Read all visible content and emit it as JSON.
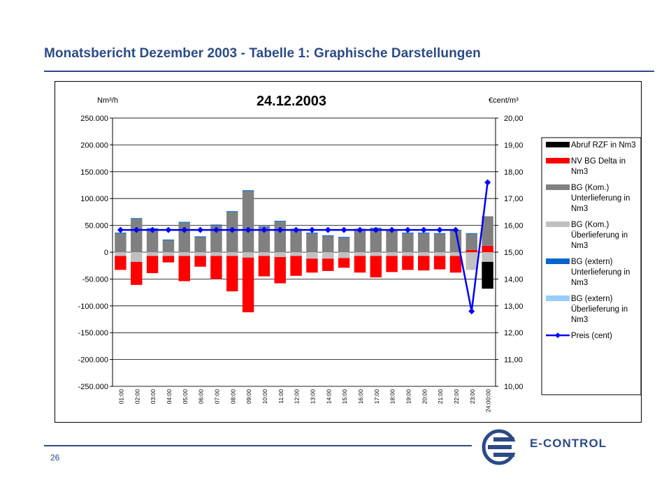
{
  "header": {
    "title": "Monatsbericht Dezember 2003 - Tabelle 1: Graphische Darstellungen"
  },
  "footer": {
    "page_number": "26",
    "brand": "E-CONTROL"
  },
  "colors": {
    "brand_blue": "#2b4a86",
    "abruf": "#000000",
    "nv_delta": "#ff0000",
    "bg_unter": "#808080",
    "bg_ueber": "#c0c0c0",
    "ext_unter": "#0066cc",
    "ext_ueber": "#99ccff",
    "preis": "#0000ff"
  },
  "chart_data": {
    "type": "bar",
    "title": "24.12.2003",
    "ylabel_left": "Nm³/h",
    "ylabel_right": "€cent/m³",
    "ylim_left": [
      -250000,
      250000
    ],
    "ylim_right": [
      10,
      20
    ],
    "yticks_left": [
      "250.000",
      "200.000",
      "150.000",
      "100.000",
      "50.000",
      "0",
      "-50.000",
      "-100.000",
      "-150.000",
      "-200.000",
      "-250.000"
    ],
    "yticks_right": [
      "20,00",
      "19,00",
      "18,00",
      "17,00",
      "16,00",
      "15,00",
      "14,00",
      "13,00",
      "12,00",
      "11,00",
      "10,00"
    ],
    "categories": [
      "01:00",
      "02:00",
      "03:00",
      "04:00",
      "05:00",
      "06:00",
      "07:00",
      "08:00",
      "09:00",
      "10:00",
      "11:00",
      "12:00",
      "13:00",
      "14:00",
      "15:00",
      "16:00",
      "17:00",
      "18:00",
      "19:00",
      "20:00",
      "21:00",
      "22:00",
      "23:00",
      "24:00:00"
    ],
    "legend_position": "right",
    "series": [
      {
        "name": "Abruf RZF in Nm3",
        "kind": "bar",
        "color": "#000000",
        "values": [
          0,
          0,
          0,
          0,
          0,
          0,
          0,
          0,
          0,
          0,
          0,
          0,
          0,
          0,
          0,
          0,
          0,
          0,
          0,
          0,
          0,
          0,
          0,
          -50000
        ]
      },
      {
        "name": "NV BG Delta in Nm3",
        "kind": "bar",
        "color": "#ff0000",
        "values": [
          -26000,
          -43000,
          -32000,
          -12000,
          -47000,
          -20000,
          -43000,
          -66000,
          -102000,
          -38000,
          -49000,
          -37000,
          -26000,
          -23000,
          -18000,
          -31000,
          -40000,
          -30000,
          -26000,
          -27000,
          -25000,
          -31000,
          4000,
          12000
        ]
      },
      {
        "name": "BG (Kom.) Unterlieferung in Nm3",
        "kind": "bar",
        "color": "#808080",
        "values": [
          35000,
          62000,
          43000,
          22000,
          55000,
          28000,
          50000,
          75000,
          114000,
          47000,
          57000,
          42000,
          35000,
          30000,
          27000,
          42000,
          44000,
          40000,
          35000,
          35000,
          34000,
          40000,
          30000,
          55000
        ]
      },
      {
        "name": "BG (Kom.) Überlieferung in Nm3",
        "kind": "bar",
        "color": "#c0c0c0",
        "values": [
          -7000,
          -18000,
          -7000,
          -7000,
          -7000,
          -7000,
          -7000,
          -7000,
          -10000,
          -7000,
          -9000,
          -7000,
          -12000,
          -12000,
          -11000,
          -7000,
          -7000,
          -7000,
          -7000,
          -7000,
          -7000,
          -7000,
          -33000,
          -18000
        ]
      },
      {
        "name": "BG (extern) Unterlieferung in Nm3",
        "kind": "bar",
        "color": "#0066cc",
        "values": [
          1500,
          1500,
          1500,
          1500,
          1500,
          1500,
          1500,
          1500,
          1500,
          1500,
          1500,
          1500,
          1500,
          1500,
          1500,
          1500,
          1500,
          1500,
          1500,
          1500,
          1500,
          1500,
          1500,
          0
        ]
      },
      {
        "name": "BG (extern) Überlieferung in Nm3",
        "kind": "bar",
        "color": "#99ccff",
        "values": [
          0,
          0,
          0,
          0,
          0,
          0,
          0,
          0,
          0,
          0,
          0,
          0,
          0,
          0,
          0,
          0,
          0,
          0,
          0,
          0,
          0,
          0,
          0,
          0
        ]
      },
      {
        "name": "Preis (cent)",
        "kind": "line",
        "axis": "right",
        "color": "#0000ff",
        "values": [
          15.83,
          15.83,
          15.83,
          15.83,
          15.83,
          15.83,
          15.83,
          15.83,
          15.83,
          15.83,
          15.83,
          15.83,
          15.83,
          15.83,
          15.83,
          15.83,
          15.83,
          15.83,
          15.83,
          15.83,
          15.83,
          15.83,
          12.8,
          17.6
        ]
      }
    ],
    "legend": [
      {
        "label": "Abruf RZF in Nm3",
        "color": "#000000",
        "marker": "bar"
      },
      {
        "label": "NV BG Delta in Nm3",
        "color": "#ff0000",
        "marker": "bar"
      },
      {
        "label": "BG (Kom.) Unterlieferung in Nm3",
        "color": "#808080",
        "marker": "bar"
      },
      {
        "label": "BG (Kom.) Überlieferung in Nm3",
        "color": "#c0c0c0",
        "marker": "bar"
      },
      {
        "label": "BG (extern) Unterlieferung in Nm3",
        "color": "#0066cc",
        "marker": "bar"
      },
      {
        "label": "BG (extern) Überlieferung in Nm3",
        "color": "#99ccff",
        "marker": "bar"
      },
      {
        "label": "Preis (cent)",
        "color": "#0000ff",
        "marker": "line"
      }
    ]
  }
}
